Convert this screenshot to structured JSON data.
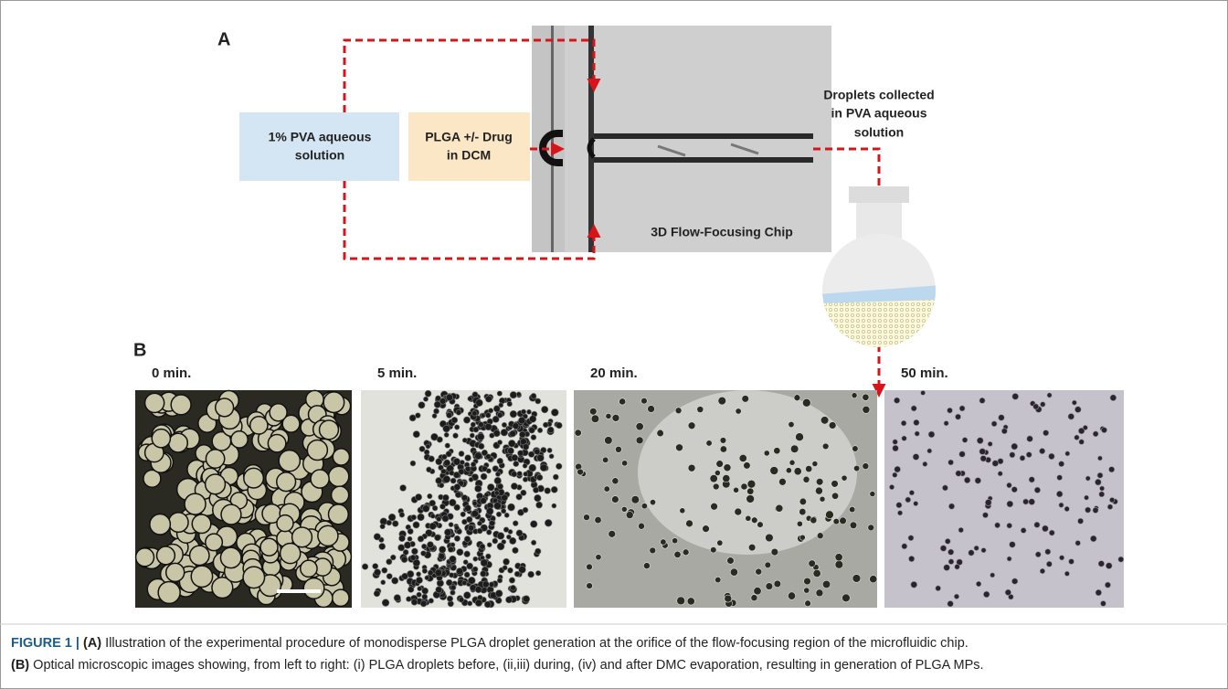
{
  "panel_a": {
    "label": "A",
    "continuous_phase": [
      "1% PVA aqueous",
      "solution"
    ],
    "dispersed_phase": [
      "PLGA +/- Drug",
      "in DCM"
    ],
    "chip_label": "3D Flow-Focusing Chip",
    "collection_label": [
      "Droplets collected",
      "in PVA aqueous",
      "solution"
    ]
  },
  "panel_b": {
    "label": "B",
    "images": [
      {
        "time": "0 min."
      },
      {
        "time": "5 min."
      },
      {
        "time": "20 min."
      },
      {
        "time": "50 min."
      }
    ]
  },
  "caption": {
    "figure_label": "FIGURE 1 |",
    "parts": [
      {
        "label": "(A)",
        "text": "Illustration of the experimental procedure of monodisperse PLGA droplet generation at the orifice of the flow-focusing region of the microfluidic chip."
      },
      {
        "label": "(B)",
        "text": "Optical microscopic images showing, from left to right: (i) PLGA droplets before, (ii,iii) during, (iv) and after DMC evaporation, resulting in generation of PLGA MPs."
      }
    ]
  }
}
